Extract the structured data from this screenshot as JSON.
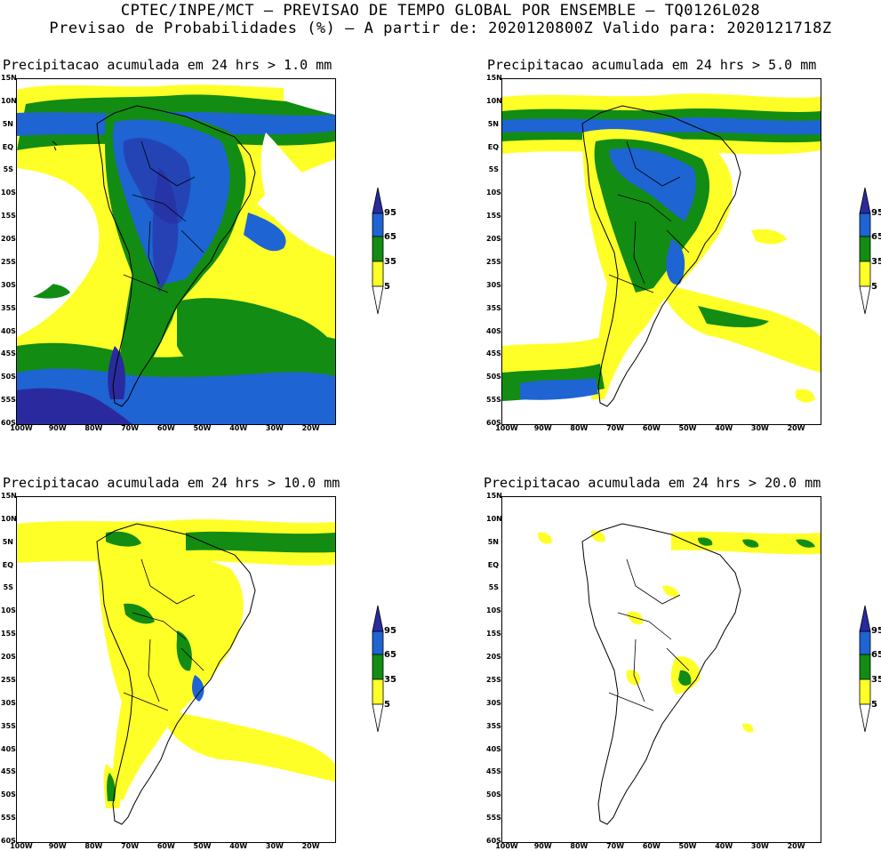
{
  "header": {
    "line1": "CPTEC/INPE/MCT – PREVISAO DE TEMPO GLOBAL POR ENSEMBLE – TQ0126L028",
    "line2": "Previsao de Probabilidades (%) –  A partir de: 2020120800Z  Valido para: 2020121718Z"
  },
  "panels": [
    {
      "title": "Precipitacao acumulada em 24 hrs > 1.0 mm"
    },
    {
      "title": "Precipitacao acumulada em 24 hrs > 5.0 mm"
    },
    {
      "title": "Precipitacao acumulada em 24 hrs > 10.0 mm"
    },
    {
      "title": "Precipitacao acumulada em 24 hrs > 20.0 mm"
    }
  ],
  "axes": {
    "lat_labels": [
      "15N",
      "10N",
      "5N",
      "EQ",
      "5S",
      "10S",
      "15S",
      "20S",
      "25S",
      "30S",
      "35S",
      "40S",
      "45S",
      "50S",
      "55S",
      "60S"
    ],
    "lon_labels": [
      "100W",
      "90W",
      "80W",
      "70W",
      "60W",
      "50W",
      "40W",
      "30W",
      "20W"
    ]
  },
  "colorbar": {
    "labels": [
      "95",
      "65",
      "35",
      "5"
    ],
    "colors": {
      "c95": "#2a2a9e",
      "c65": "#1e64d2",
      "c35": "#128c12",
      "c5": "#ffff28",
      "none": "#ffffff"
    }
  }
}
